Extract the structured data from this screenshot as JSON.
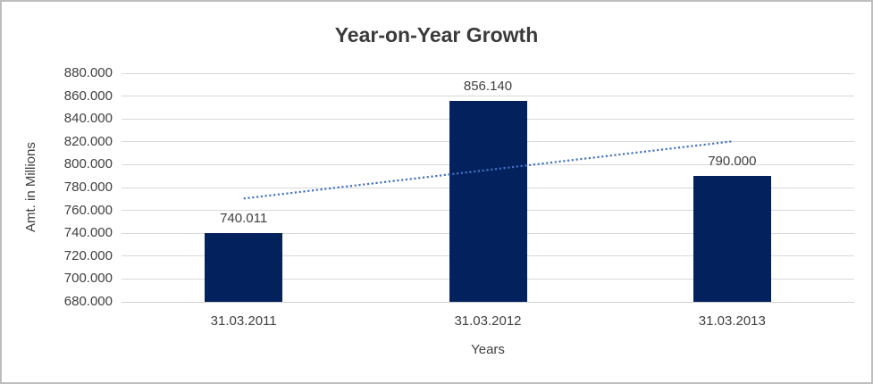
{
  "chart_data": {
    "type": "bar",
    "title": "Year-on-Year Growth",
    "xlabel": "Years",
    "ylabel": "Amt. in Millions",
    "categories": [
      "31.03.2011",
      "31.03.2012",
      "31.03.2013"
    ],
    "values": [
      740011,
      856140,
      790000
    ],
    "data_labels": [
      "740.011",
      "856.140",
      "790.000"
    ],
    "ylim": [
      680000,
      880000
    ],
    "ytick_step": 20000,
    "ytick_labels": [
      "680.000",
      "700.000",
      "720.000",
      "740.000",
      "760.000",
      "780.000",
      "800.000",
      "820.000",
      "840.000",
      "860.000",
      "880.000"
    ],
    "grid": true,
    "legend": "none",
    "trendline": {
      "type": "linear",
      "style": "dotted",
      "endpoints": [
        770389,
        820378
      ]
    },
    "colors": {
      "bar": "#03215c",
      "trendline": "#4472c4",
      "gridline": "#d9d9d9",
      "axis_line": "#d0d0d0",
      "text": "#404040",
      "title": "#3b3b3b",
      "background": "#ffffff",
      "border": "#bebebe"
    }
  }
}
